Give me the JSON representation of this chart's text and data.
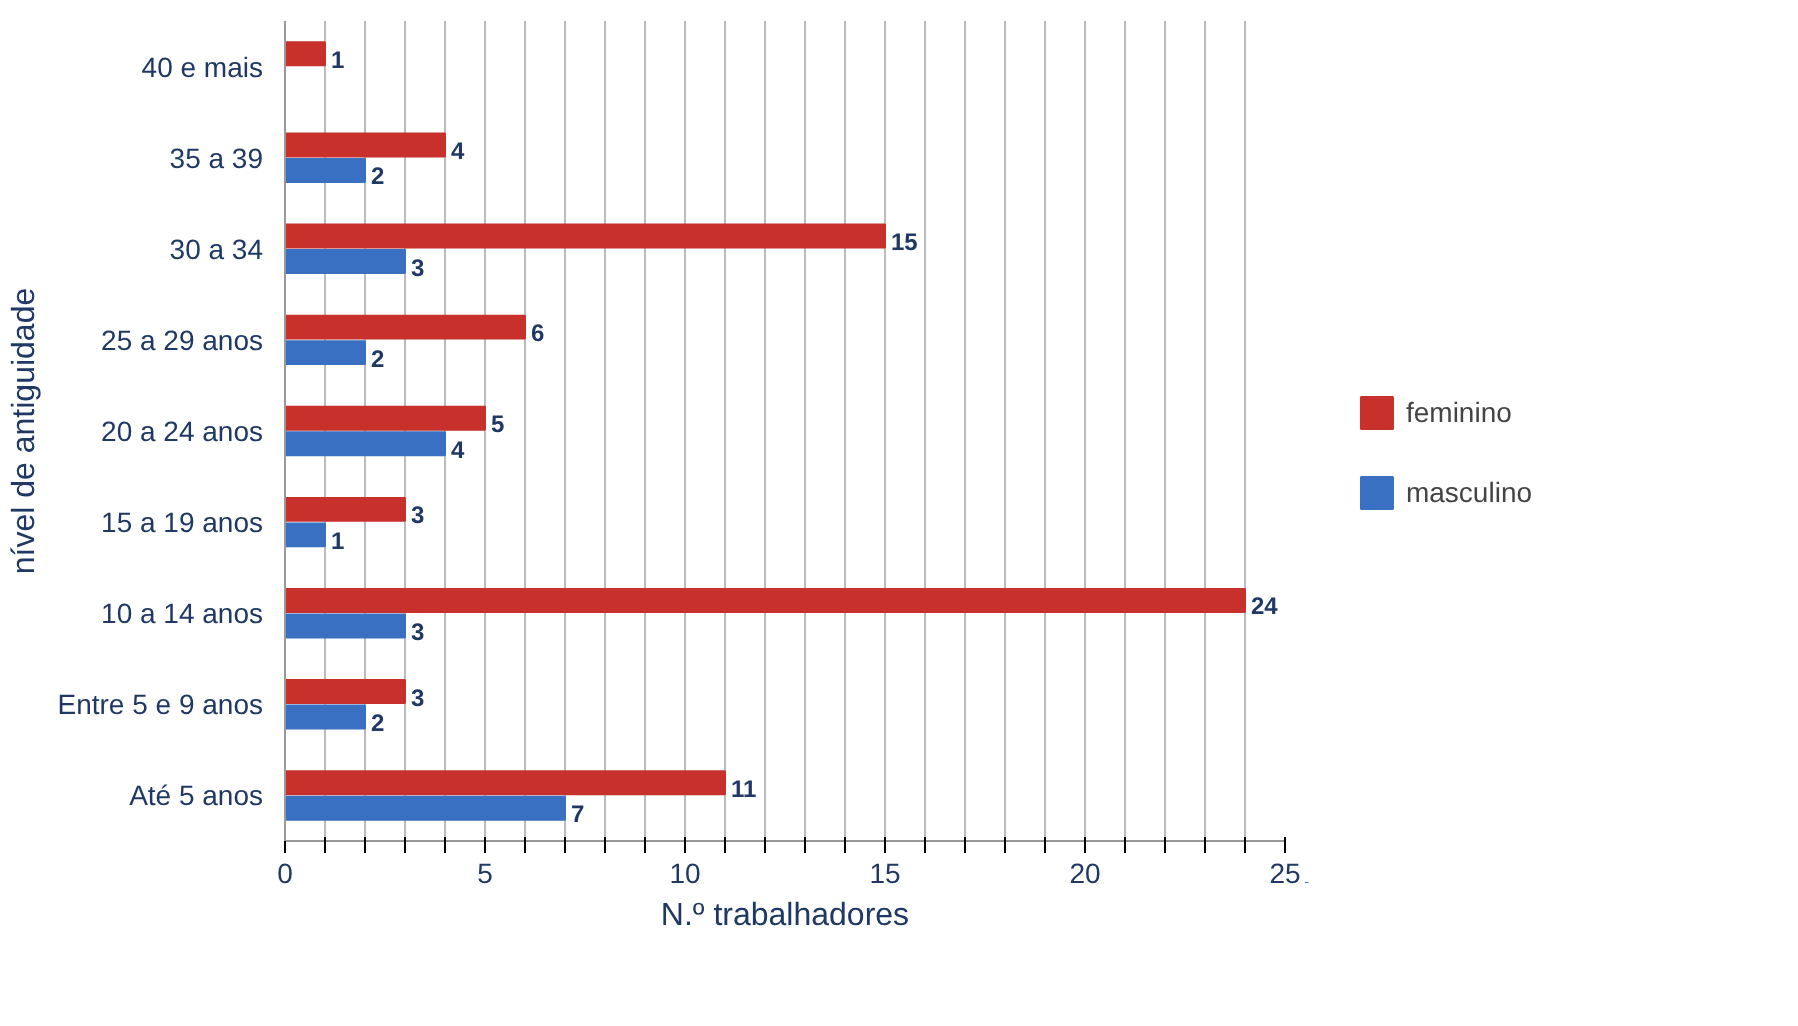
{
  "chart_data": {
    "type": "bar",
    "orientation": "horizontal",
    "xlabel": "N.º trabalhadores",
    "ylabel": "nível de antiguidade",
    "categories": [
      "40 e mais",
      "35 a 39",
      "30 a 34",
      "25 a 29 anos",
      "20 a 24 anos",
      "15 a 19 anos",
      "10 a 14 anos",
      "Entre 5 e 9 anos",
      "Até 5 anos"
    ],
    "series": [
      {
        "name": "feminino",
        "color": "#c8302c",
        "values": [
          1,
          4,
          15,
          6,
          5,
          3,
          24,
          3,
          11
        ]
      },
      {
        "name": "masculino",
        "color": "#3a70c2",
        "values": [
          null,
          2,
          3,
          2,
          4,
          1,
          3,
          2,
          7
        ]
      }
    ],
    "xlim": [
      0,
      25
    ],
    "xticks": [
      0,
      {
        "value": 1,
        "label": null
      },
      {
        "value": 2,
        "label": null
      },
      {
        "value": 3,
        "label": null
      },
      {
        "value": 4,
        "label": null
      },
      5,
      {
        "value": 6,
        "label": null
      },
      {
        "value": 7,
        "label": null
      },
      {
        "value": 8,
        "label": null
      },
      {
        "value": 9,
        "label": null
      },
      10,
      {
        "value": 11,
        "label": null
      },
      {
        "value": 12,
        "label": null
      },
      {
        "value": 13,
        "label": null
      },
      {
        "value": 14,
        "label": null
      },
      15,
      {
        "value": 16,
        "label": null
      },
      {
        "value": 17,
        "label": null
      },
      {
        "value": 18,
        "label": null
      },
      {
        "value": 19,
        "label": null
      },
      20,
      {
        "value": 21,
        "label": null
      },
      {
        "value": 22,
        "label": null
      },
      {
        "value": 23,
        "label": null
      },
      {
        "value": 24,
        "label": null
      },
      25
    ],
    "grid": "x",
    "legend": "right",
    "data_labels": true
  }
}
